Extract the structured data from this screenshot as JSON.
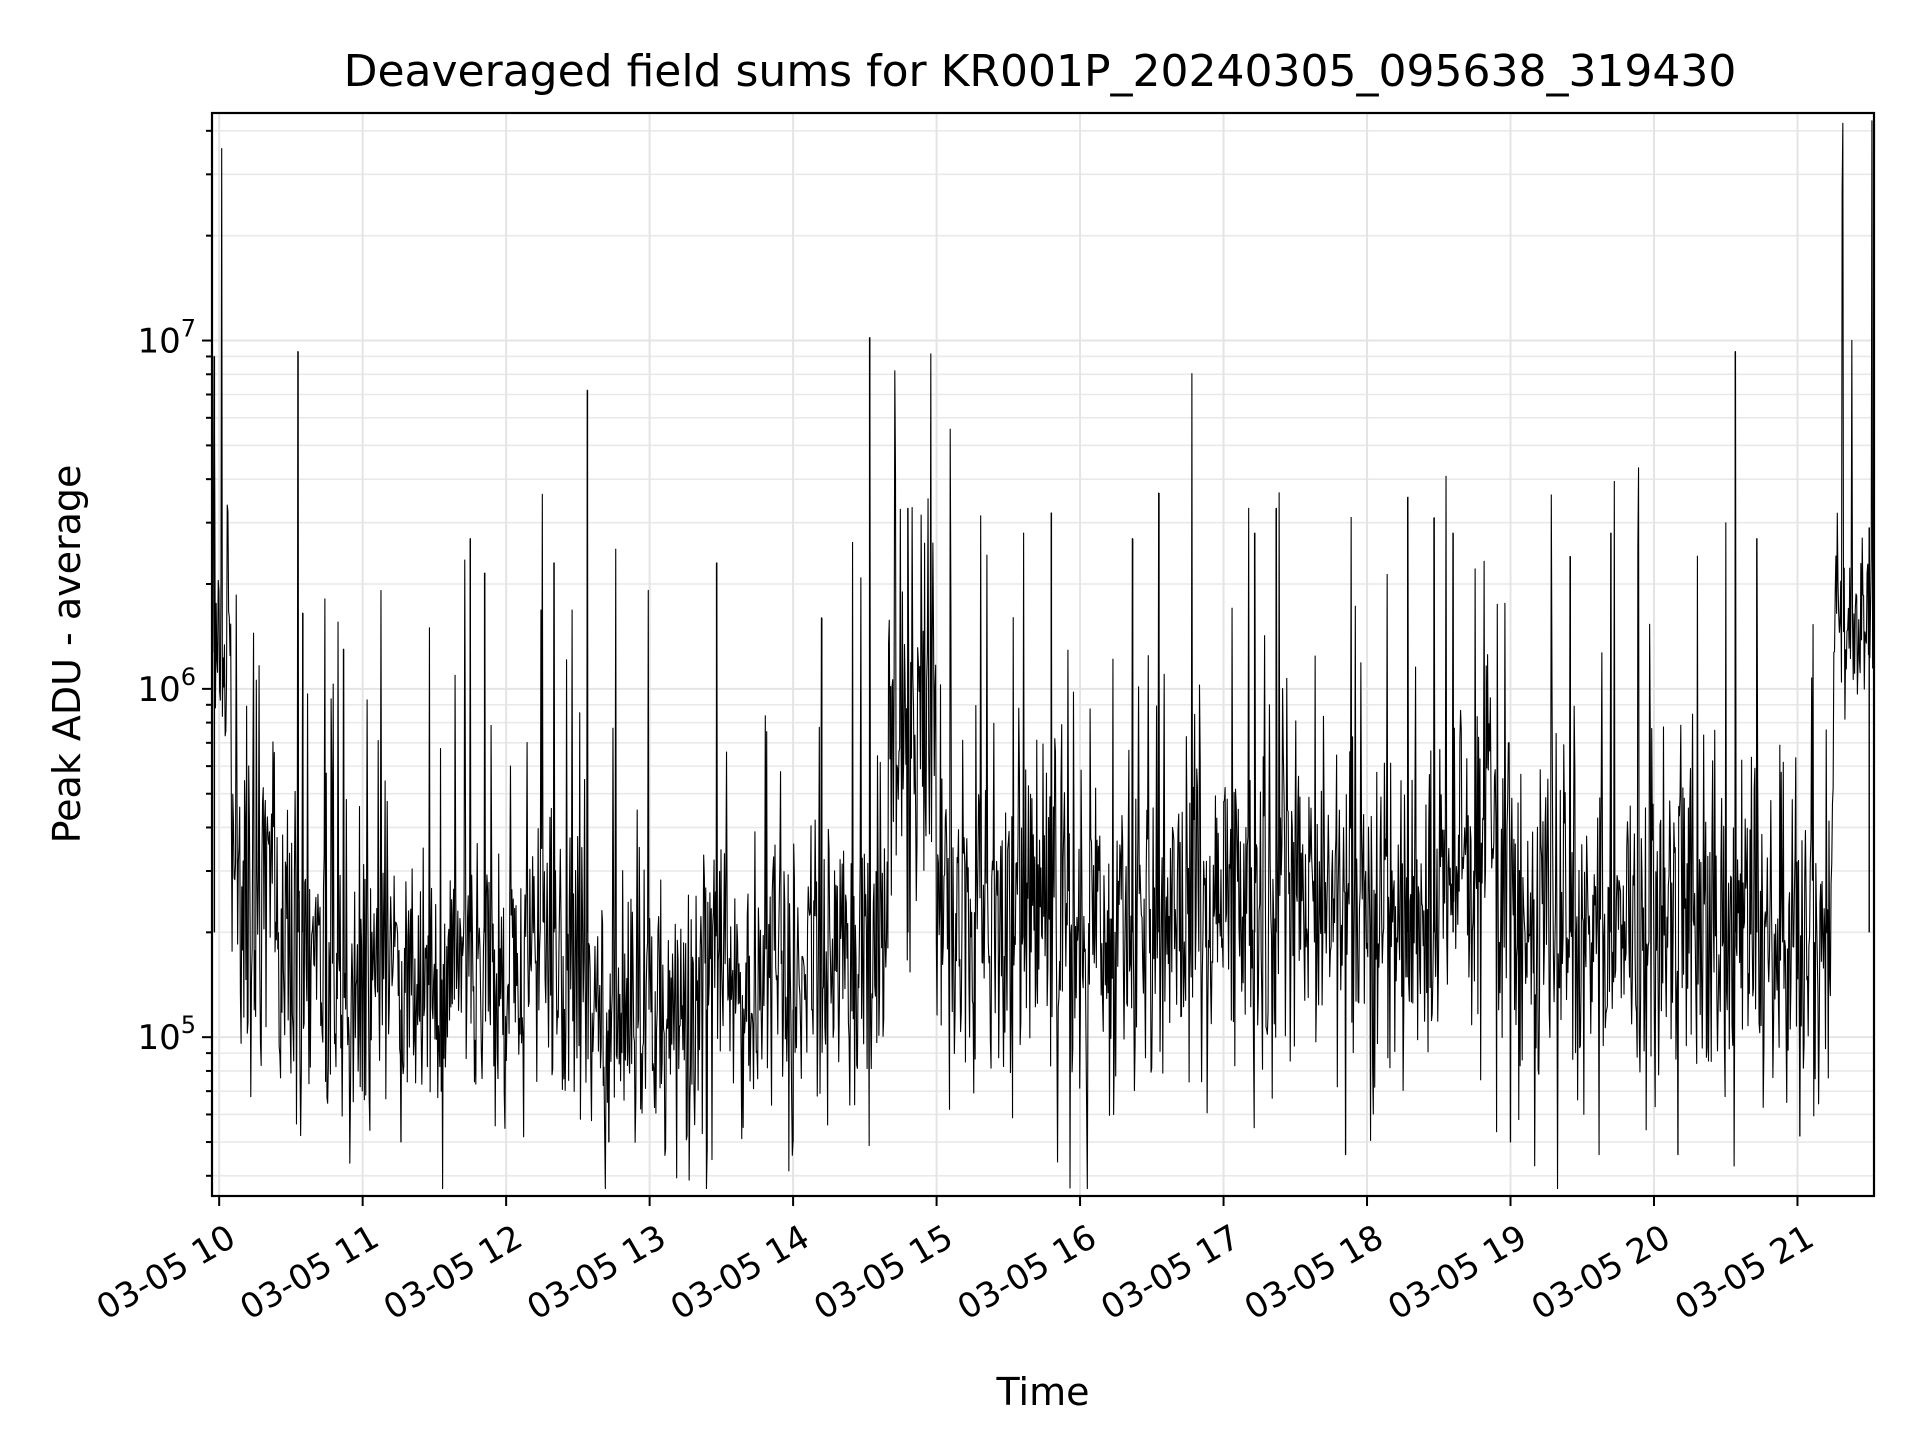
{
  "chart_data": {
    "type": "line",
    "title": "Deaveraged field sums for KR001P_20240305_095638_319430",
    "xlabel": "Time",
    "ylabel": "Peak ADU - average",
    "yscale": "log",
    "ylim": [
      35000,
      45000000
    ],
    "xlim": [
      "2024-03-05 09:57",
      "2024-03-05 21:32"
    ],
    "grid": true,
    "x_ticks": [
      "03-05 10",
      "03-05 11",
      "03-05 12",
      "03-05 13",
      "03-05 14",
      "03-05 15",
      "03-05 16",
      "03-05 17",
      "03-05 18",
      "03-05 19",
      "03-05 20",
      "03-05 21"
    ],
    "y_ticks": [
      {
        "value": 100000,
        "base": "10",
        "exp": "5"
      },
      {
        "value": 1000000,
        "base": "10",
        "exp": "6"
      },
      {
        "value": 10000000,
        "base": "10",
        "exp": "7"
      }
    ],
    "series": [
      {
        "color": "#000000",
        "segments": [
          {
            "start": "09:57",
            "end": "10:05",
            "level": 1500000,
            "spread": 0.35
          },
          {
            "start": "10:05",
            "end": "10:25",
            "level": 250000,
            "spread": 0.55
          },
          {
            "start": "10:25",
            "end": "12:00",
            "level": 150000,
            "spread": 0.45
          },
          {
            "start": "12:00",
            "end": "12:30",
            "level": 170000,
            "spread": 0.45
          },
          {
            "start": "12:30",
            "end": "13:20",
            "level": 120000,
            "spread": 0.42
          },
          {
            "start": "13:20",
            "end": "14:40",
            "level": 160000,
            "spread": 0.45
          },
          {
            "start": "14:40",
            "end": "15:00",
            "level": 700000,
            "spread": 0.6
          },
          {
            "start": "15:00",
            "end": "16:00",
            "level": 220000,
            "spread": 0.5
          },
          {
            "start": "16:00",
            "end": "17:30",
            "level": 230000,
            "spread": 0.55
          },
          {
            "start": "17:30",
            "end": "18:00",
            "level": 260000,
            "spread": 0.5
          },
          {
            "start": "18:00",
            "end": "18:30",
            "level": 200000,
            "spread": 0.5
          },
          {
            "start": "18:30",
            "end": "19:00",
            "level": 320000,
            "spread": 0.5
          },
          {
            "start": "19:00",
            "end": "21:15",
            "level": 200000,
            "spread": 0.5
          },
          {
            "start": "21:15",
            "end": "21:32",
            "level": 1600000,
            "spread": 0.25
          }
        ],
        "spikes": [
          {
            "time": "09:58",
            "value": 9000000
          },
          {
            "time": "10:33",
            "value": 9300000
          },
          {
            "time": "10:35",
            "value": 1650000
          },
          {
            "time": "10:52",
            "value": 1300000
          },
          {
            "time": "11:45",
            "value": 2700000
          },
          {
            "time": "11:51",
            "value": 2150000
          },
          {
            "time": "12:34",
            "value": 7200000
          },
          {
            "time": "12:20",
            "value": 2300000
          },
          {
            "time": "13:28",
            "value": 2300000
          },
          {
            "time": "14:12",
            "value": 1600000
          },
          {
            "time": "14:32",
            "value": 10200000
          },
          {
            "time": "14:48",
            "value": 3300000
          },
          {
            "time": "15:48",
            "value": 3200000
          },
          {
            "time": "16:22",
            "value": 2700000
          },
          {
            "time": "16:33",
            "value": 3650000
          },
          {
            "time": "17:22",
            "value": 3300000
          },
          {
            "time": "17:13",
            "value": 2800000
          },
          {
            "time": "18:17",
            "value": 3550000
          },
          {
            "time": "18:28",
            "value": 3100000
          },
          {
            "time": "18:36",
            "value": 2800000
          },
          {
            "time": "19:25",
            "value": 2400000
          },
          {
            "time": "19:42",
            "value": 2800000
          },
          {
            "time": "20:34",
            "value": 9300000
          },
          {
            "time": "20:43",
            "value": 2700000
          },
          {
            "time": "21:30",
            "value": 2900000
          }
        ],
        "dips": [
          {
            "time": "11:16",
            "value": 50000
          },
          {
            "time": "12:43",
            "value": 50000
          },
          {
            "time": "13:24",
            "value": 47000
          },
          {
            "time": "14:00",
            "value": 50000
          },
          {
            "time": "17:51",
            "value": 46000
          },
          {
            "time": "19:00",
            "value": 50000
          },
          {
            "time": "20:10",
            "value": 46000
          },
          {
            "time": "21:01",
            "value": 52000
          }
        ]
      }
    ]
  }
}
